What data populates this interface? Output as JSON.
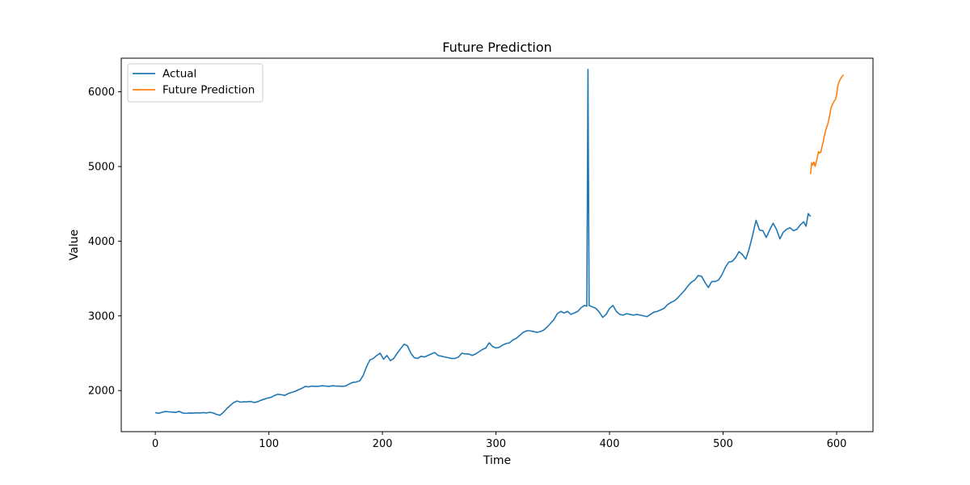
{
  "chart_data": {
    "type": "line",
    "title": "Future Prediction",
    "xlabel": "Time",
    "ylabel": "Value",
    "xlim": [
      -30,
      632
    ],
    "ylim": [
      1450,
      6450
    ],
    "xticks": [
      0,
      100,
      200,
      300,
      400,
      500,
      600
    ],
    "yticks": [
      2000,
      3000,
      4000,
      5000,
      6000
    ],
    "grid": false,
    "legend_position": "top-left",
    "series": [
      {
        "name": "Actual",
        "color": "#1f77b4",
        "points": [
          [
            0,
            1705
          ],
          [
            3,
            1695
          ],
          [
            6,
            1710
          ],
          [
            9,
            1720
          ],
          [
            12,
            1715
          ],
          [
            15,
            1712
          ],
          [
            18,
            1708
          ],
          [
            21,
            1722
          ],
          [
            24,
            1700
          ],
          [
            27,
            1695
          ],
          [
            30,
            1700
          ],
          [
            33,
            1698
          ],
          [
            36,
            1702
          ],
          [
            39,
            1700
          ],
          [
            42,
            1705
          ],
          [
            45,
            1700
          ],
          [
            48,
            1710
          ],
          [
            51,
            1700
          ],
          [
            54,
            1680
          ],
          [
            57,
            1670
          ],
          [
            60,
            1710
          ],
          [
            63,
            1760
          ],
          [
            66,
            1800
          ],
          [
            69,
            1840
          ],
          [
            72,
            1860
          ],
          [
            75,
            1845
          ],
          [
            78,
            1850
          ],
          [
            81,
            1850
          ],
          [
            84,
            1855
          ],
          [
            87,
            1840
          ],
          [
            90,
            1850
          ],
          [
            93,
            1870
          ],
          [
            96,
            1885
          ],
          [
            99,
            1900
          ],
          [
            102,
            1910
          ],
          [
            105,
            1935
          ],
          [
            108,
            1950
          ],
          [
            111,
            1945
          ],
          [
            114,
            1935
          ],
          [
            117,
            1960
          ],
          [
            120,
            1975
          ],
          [
            123,
            1990
          ],
          [
            126,
            2010
          ],
          [
            129,
            2030
          ],
          [
            132,
            2055
          ],
          [
            135,
            2050
          ],
          [
            138,
            2060
          ],
          [
            141,
            2055
          ],
          [
            144,
            2058
          ],
          [
            147,
            2065
          ],
          [
            150,
            2060
          ],
          [
            153,
            2055
          ],
          [
            156,
            2065
          ],
          [
            159,
            2060
          ],
          [
            162,
            2060
          ],
          [
            165,
            2055
          ],
          [
            168,
            2065
          ],
          [
            171,
            2090
          ],
          [
            174,
            2110
          ],
          [
            177,
            2115
          ],
          [
            180,
            2130
          ],
          [
            183,
            2200
          ],
          [
            186,
            2320
          ],
          [
            189,
            2410
          ],
          [
            192,
            2430
          ],
          [
            195,
            2470
          ],
          [
            198,
            2500
          ],
          [
            201,
            2420
          ],
          [
            204,
            2470
          ],
          [
            207,
            2400
          ],
          [
            210,
            2430
          ],
          [
            213,
            2500
          ],
          [
            216,
            2560
          ],
          [
            219,
            2620
          ],
          [
            222,
            2600
          ],
          [
            225,
            2500
          ],
          [
            228,
            2440
          ],
          [
            231,
            2430
          ],
          [
            234,
            2460
          ],
          [
            237,
            2450
          ],
          [
            240,
            2470
          ],
          [
            243,
            2490
          ],
          [
            246,
            2510
          ],
          [
            249,
            2470
          ],
          [
            252,
            2460
          ],
          [
            255,
            2450
          ],
          [
            258,
            2440
          ],
          [
            261,
            2430
          ],
          [
            264,
            2430
          ],
          [
            267,
            2450
          ],
          [
            270,
            2500
          ],
          [
            273,
            2490
          ],
          [
            276,
            2490
          ],
          [
            279,
            2470
          ],
          [
            282,
            2490
          ],
          [
            285,
            2520
          ],
          [
            288,
            2550
          ],
          [
            291,
            2570
          ],
          [
            294,
            2640
          ],
          [
            297,
            2590
          ],
          [
            300,
            2570
          ],
          [
            303,
            2580
          ],
          [
            306,
            2610
          ],
          [
            309,
            2630
          ],
          [
            312,
            2640
          ],
          [
            315,
            2680
          ],
          [
            318,
            2700
          ],
          [
            321,
            2740
          ],
          [
            324,
            2780
          ],
          [
            327,
            2800
          ],
          [
            330,
            2800
          ],
          [
            333,
            2790
          ],
          [
            336,
            2780
          ],
          [
            339,
            2790
          ],
          [
            342,
            2810
          ],
          [
            345,
            2850
          ],
          [
            348,
            2900
          ],
          [
            351,
            2950
          ],
          [
            354,
            3030
          ],
          [
            357,
            3060
          ],
          [
            360,
            3040
          ],
          [
            363,
            3060
          ],
          [
            366,
            3020
          ],
          [
            369,
            3040
          ],
          [
            372,
            3060
          ],
          [
            375,
            3110
          ],
          [
            378,
            3140
          ],
          [
            380,
            3130
          ],
          [
            381,
            6300
          ],
          [
            382,
            3140
          ],
          [
            385,
            3120
          ],
          [
            388,
            3100
          ],
          [
            391,
            3050
          ],
          [
            394,
            2980
          ],
          [
            397,
            3020
          ],
          [
            400,
            3100
          ],
          [
            403,
            3140
          ],
          [
            406,
            3060
          ],
          [
            409,
            3020
          ],
          [
            412,
            3010
          ],
          [
            415,
            3030
          ],
          [
            418,
            3020
          ],
          [
            421,
            3010
          ],
          [
            424,
            3020
          ],
          [
            427,
            3010
          ],
          [
            430,
            3000
          ],
          [
            433,
            2990
          ],
          [
            436,
            3020
          ],
          [
            439,
            3050
          ],
          [
            442,
            3060
          ],
          [
            445,
            3080
          ],
          [
            448,
            3100
          ],
          [
            451,
            3150
          ],
          [
            454,
            3180
          ],
          [
            457,
            3200
          ],
          [
            460,
            3240
          ],
          [
            463,
            3290
          ],
          [
            466,
            3340
          ],
          [
            469,
            3400
          ],
          [
            472,
            3450
          ],
          [
            475,
            3480
          ],
          [
            478,
            3540
          ],
          [
            481,
            3530
          ],
          [
            484,
            3450
          ],
          [
            487,
            3380
          ],
          [
            490,
            3460
          ],
          [
            493,
            3460
          ],
          [
            496,
            3480
          ],
          [
            499,
            3550
          ],
          [
            502,
            3650
          ],
          [
            505,
            3720
          ],
          [
            508,
            3730
          ],
          [
            511,
            3780
          ],
          [
            514,
            3860
          ],
          [
            517,
            3820
          ],
          [
            520,
            3760
          ],
          [
            523,
            3900
          ],
          [
            526,
            4080
          ],
          [
            529,
            4280
          ],
          [
            532,
            4150
          ],
          [
            535,
            4140
          ],
          [
            538,
            4050
          ],
          [
            541,
            4150
          ],
          [
            544,
            4240
          ],
          [
            547,
            4160
          ],
          [
            550,
            4030
          ],
          [
            553,
            4120
          ],
          [
            556,
            4160
          ],
          [
            559,
            4180
          ],
          [
            562,
            4140
          ],
          [
            565,
            4160
          ],
          [
            568,
            4220
          ],
          [
            571,
            4260
          ],
          [
            573,
            4200
          ],
          [
            575,
            4370
          ],
          [
            577,
            4330
          ]
        ]
      },
      {
        "name": "Future Prediction",
        "color": "#ff7f0e",
        "points": [
          [
            577,
            4900
          ],
          [
            578,
            5050
          ],
          [
            579,
            5020
          ],
          [
            580,
            5060
          ],
          [
            581,
            5000
          ],
          [
            582,
            5060
          ],
          [
            583,
            5120
          ],
          [
            584,
            5200
          ],
          [
            585,
            5180
          ],
          [
            586,
            5190
          ],
          [
            587,
            5260
          ],
          [
            588,
            5320
          ],
          [
            589,
            5400
          ],
          [
            590,
            5460
          ],
          [
            591,
            5520
          ],
          [
            592,
            5560
          ],
          [
            593,
            5620
          ],
          [
            594,
            5700
          ],
          [
            595,
            5780
          ],
          [
            596,
            5820
          ],
          [
            597,
            5850
          ],
          [
            598,
            5880
          ],
          [
            599,
            5900
          ],
          [
            600,
            5960
          ],
          [
            601,
            6080
          ],
          [
            602,
            6130
          ],
          [
            603,
            6160
          ],
          [
            604,
            6190
          ],
          [
            605,
            6210
          ],
          [
            606,
            6230
          ]
        ]
      }
    ]
  }
}
